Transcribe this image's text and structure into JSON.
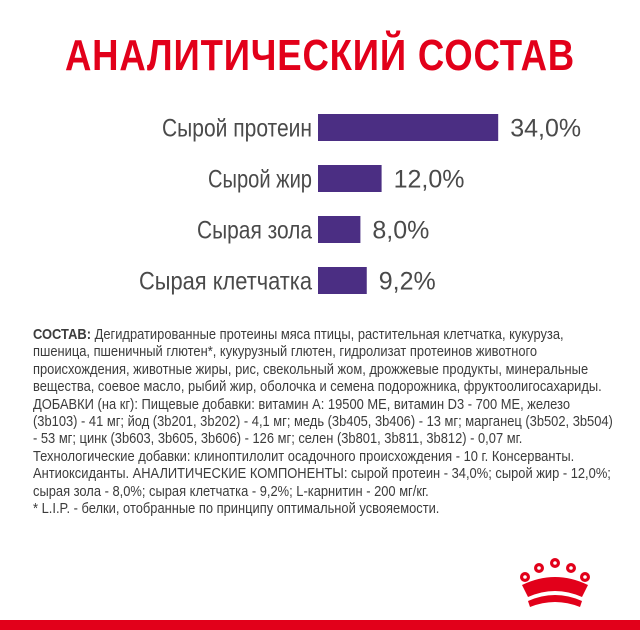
{
  "title": "АНАЛИТИЧЕСКИЙ СОСТАВ",
  "chart_data": {
    "type": "bar",
    "orientation": "horizontal",
    "categories": [
      "Сырой протеин",
      "Сырой жир",
      "Сырая зола",
      "Сырая клетчатка"
    ],
    "values": [
      34.0,
      12.0,
      8.0,
      9.2
    ],
    "value_labels": [
      "34,0%",
      "12,0%",
      "8,0%",
      "9,2%"
    ],
    "unit": "%",
    "bar_color": "#4b2e83",
    "grid": false,
    "legend": "none"
  },
  "composition": {
    "heading": "СОСТАВ:",
    "body": "Дегидратированные протеины мяса птицы, растительная клетчатка, кукуруза, пшеница, пшеничный глютен*, кукурузный глютен, гидролизат протеинов животного происхождения, животные жиры, рис, свекольный жом, дрожжевые продукты, минеральные вещества, соевое масло, рыбий жир, оболочка и семена подорожника, фруктоолигосахариды. ДОБАВКИ (на кг): Пищевые добавки: витамин А: 19500 МЕ, витамин D3 - 700 МЕ, железо (3b103) - 41 мг; йод (3b201, 3b202) - 4,1 мг; медь (3b405, 3b406) - 13 мг; марганец (3b502, 3b504) - 53 мг; цинк (3b603, 3b605, 3b606) - 126 мг; селен (3b801, 3b811, 3b812) - 0,07 мг. Технологические добавки: клиноптилолит осадочного происхождения - 10 г. Консерванты. Антиоксиданты. АНАЛИТИЧЕСКИЕ КОМПОНЕНТЫ: сырой протеин - 34,0%; сырой жир - 12,0%; сырая зола - 8,0%; сырая клетчатка - 9,2%; L-карнитин - 200 мг/кг.",
    "footnote": "* L.I.P. - белки, отобранные по принципу оптимальной усвояемости."
  },
  "brand": {
    "logo": "crown-icon",
    "accent_color": "#e2001a"
  }
}
